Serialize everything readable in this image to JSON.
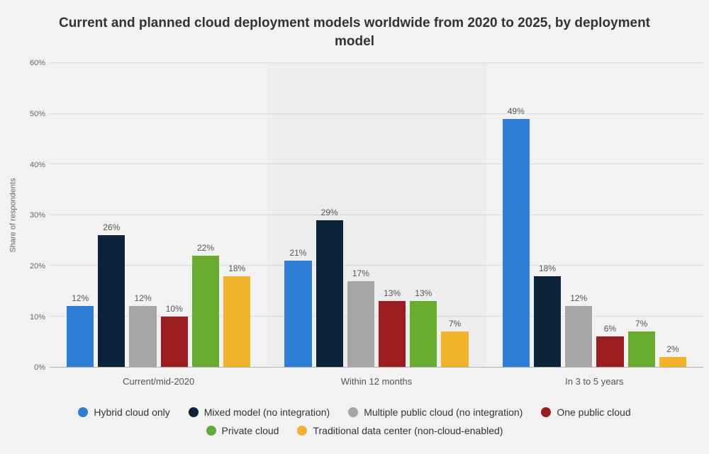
{
  "chart": {
    "type": "bar",
    "title": "Current and planned cloud deployment models worldwide from 2020 to 2025, by deployment model",
    "title_fontsize": 19,
    "ylabel": "Share of respondents",
    "label_fontsize": 11,
    "ylim": [
      0,
      60
    ],
    "ytick_step": 10,
    "ytick_suffix": "%",
    "background_color": "#f2f2f2",
    "grid_color": "#dcdcdc",
    "categories": [
      "Current/mid-2020",
      "Within 12 months",
      "In 3 to 5 years"
    ],
    "category_shaded": [
      false,
      true,
      false
    ],
    "series": [
      {
        "name": "Hybrid cloud only",
        "color": "#2f7ed8",
        "values": [
          12,
          21,
          49
        ]
      },
      {
        "name": "Mixed model (no integration)",
        "color": "#0d233a",
        "values": [
          26,
          29,
          18
        ]
      },
      {
        "name": "Multiple public cloud (no integration)",
        "color": "#a6a6a6",
        "values": [
          12,
          17,
          12
        ]
      },
      {
        "name": "One public cloud",
        "color": "#9b1d20",
        "values": [
          10,
          13,
          6
        ]
      },
      {
        "name": "Private cloud",
        "color": "#68ac2f",
        "values": [
          22,
          13,
          7
        ]
      },
      {
        "name": "Traditional data center (non-cloud-enabled)",
        "color": "#f2b32a",
        "values": [
          18,
          7,
          2
        ]
      }
    ],
    "bar_label_fontsize": 12,
    "bar_label_suffix": "%"
  }
}
